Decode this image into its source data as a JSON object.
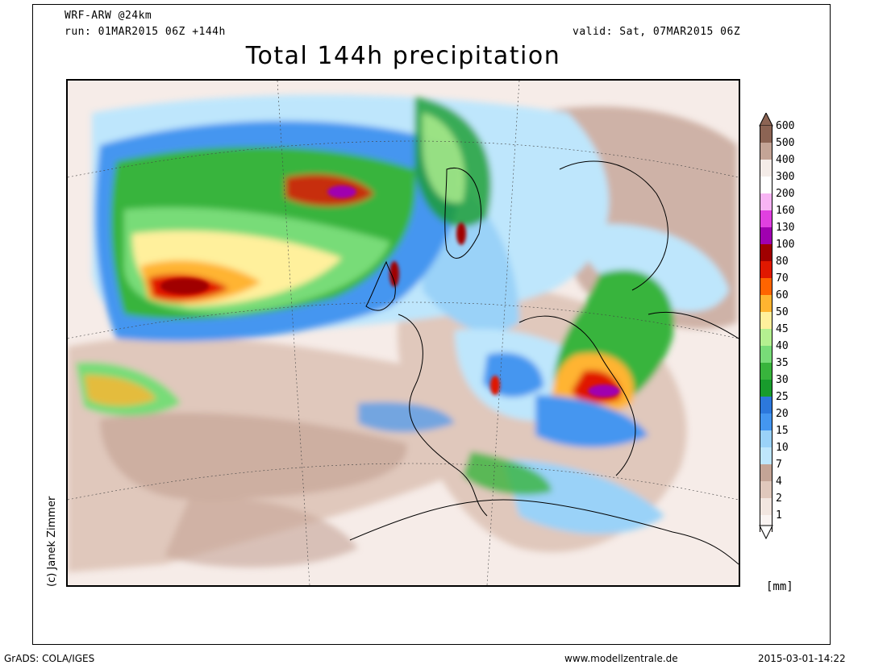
{
  "header": {
    "model": "WRF-ARW @24km",
    "run": "run: 01MAR2015 06Z +144h",
    "valid": "valid: Sat, 07MAR2015 06Z",
    "title": "Total 144h precipitation"
  },
  "credit": "(c) Janek Zimmer",
  "legend": {
    "unit": "[mm]",
    "levels": [
      {
        "label": "600",
        "color": "#8c6454"
      },
      {
        "label": "500",
        "color": "#c4a496"
      },
      {
        "label": "400",
        "color": "#f4ece8"
      },
      {
        "label": "300",
        "color": "#ffffff"
      },
      {
        "label": "200",
        "color": "#f8b4f4"
      },
      {
        "label": "160",
        "color": "#e040e0"
      },
      {
        "label": "130",
        "color": "#a000b0"
      },
      {
        "label": "100",
        "color": "#a00000"
      },
      {
        "label": "80",
        "color": "#e01800"
      },
      {
        "label": "70",
        "color": "#ff6400"
      },
      {
        "label": "60",
        "color": "#ffb430"
      },
      {
        "label": "50",
        "color": "#fff09c"
      },
      {
        "label": "45",
        "color": "#b4f090"
      },
      {
        "label": "40",
        "color": "#78dc78"
      },
      {
        "label": "35",
        "color": "#38b43c"
      },
      {
        "label": "30",
        "color": "#189c2c"
      },
      {
        "label": "25",
        "color": "#2c78dc"
      },
      {
        "label": "20",
        "color": "#4496f0"
      },
      {
        "label": "15",
        "color": "#9ad2f8"
      },
      {
        "label": "10",
        "color": "#bee6fc"
      },
      {
        "label": "7",
        "color": "#c4a496"
      },
      {
        "label": "4",
        "color": "#e0c8bc"
      },
      {
        "label": "2",
        "color": "#f2e6e0"
      },
      {
        "label": "1",
        "color": "#faf4f2"
      }
    ]
  },
  "footer": {
    "left": "GrADS: COLA/IGES",
    "center": "www.modellzentrale.de",
    "right": "2015-03-01-14:22"
  }
}
